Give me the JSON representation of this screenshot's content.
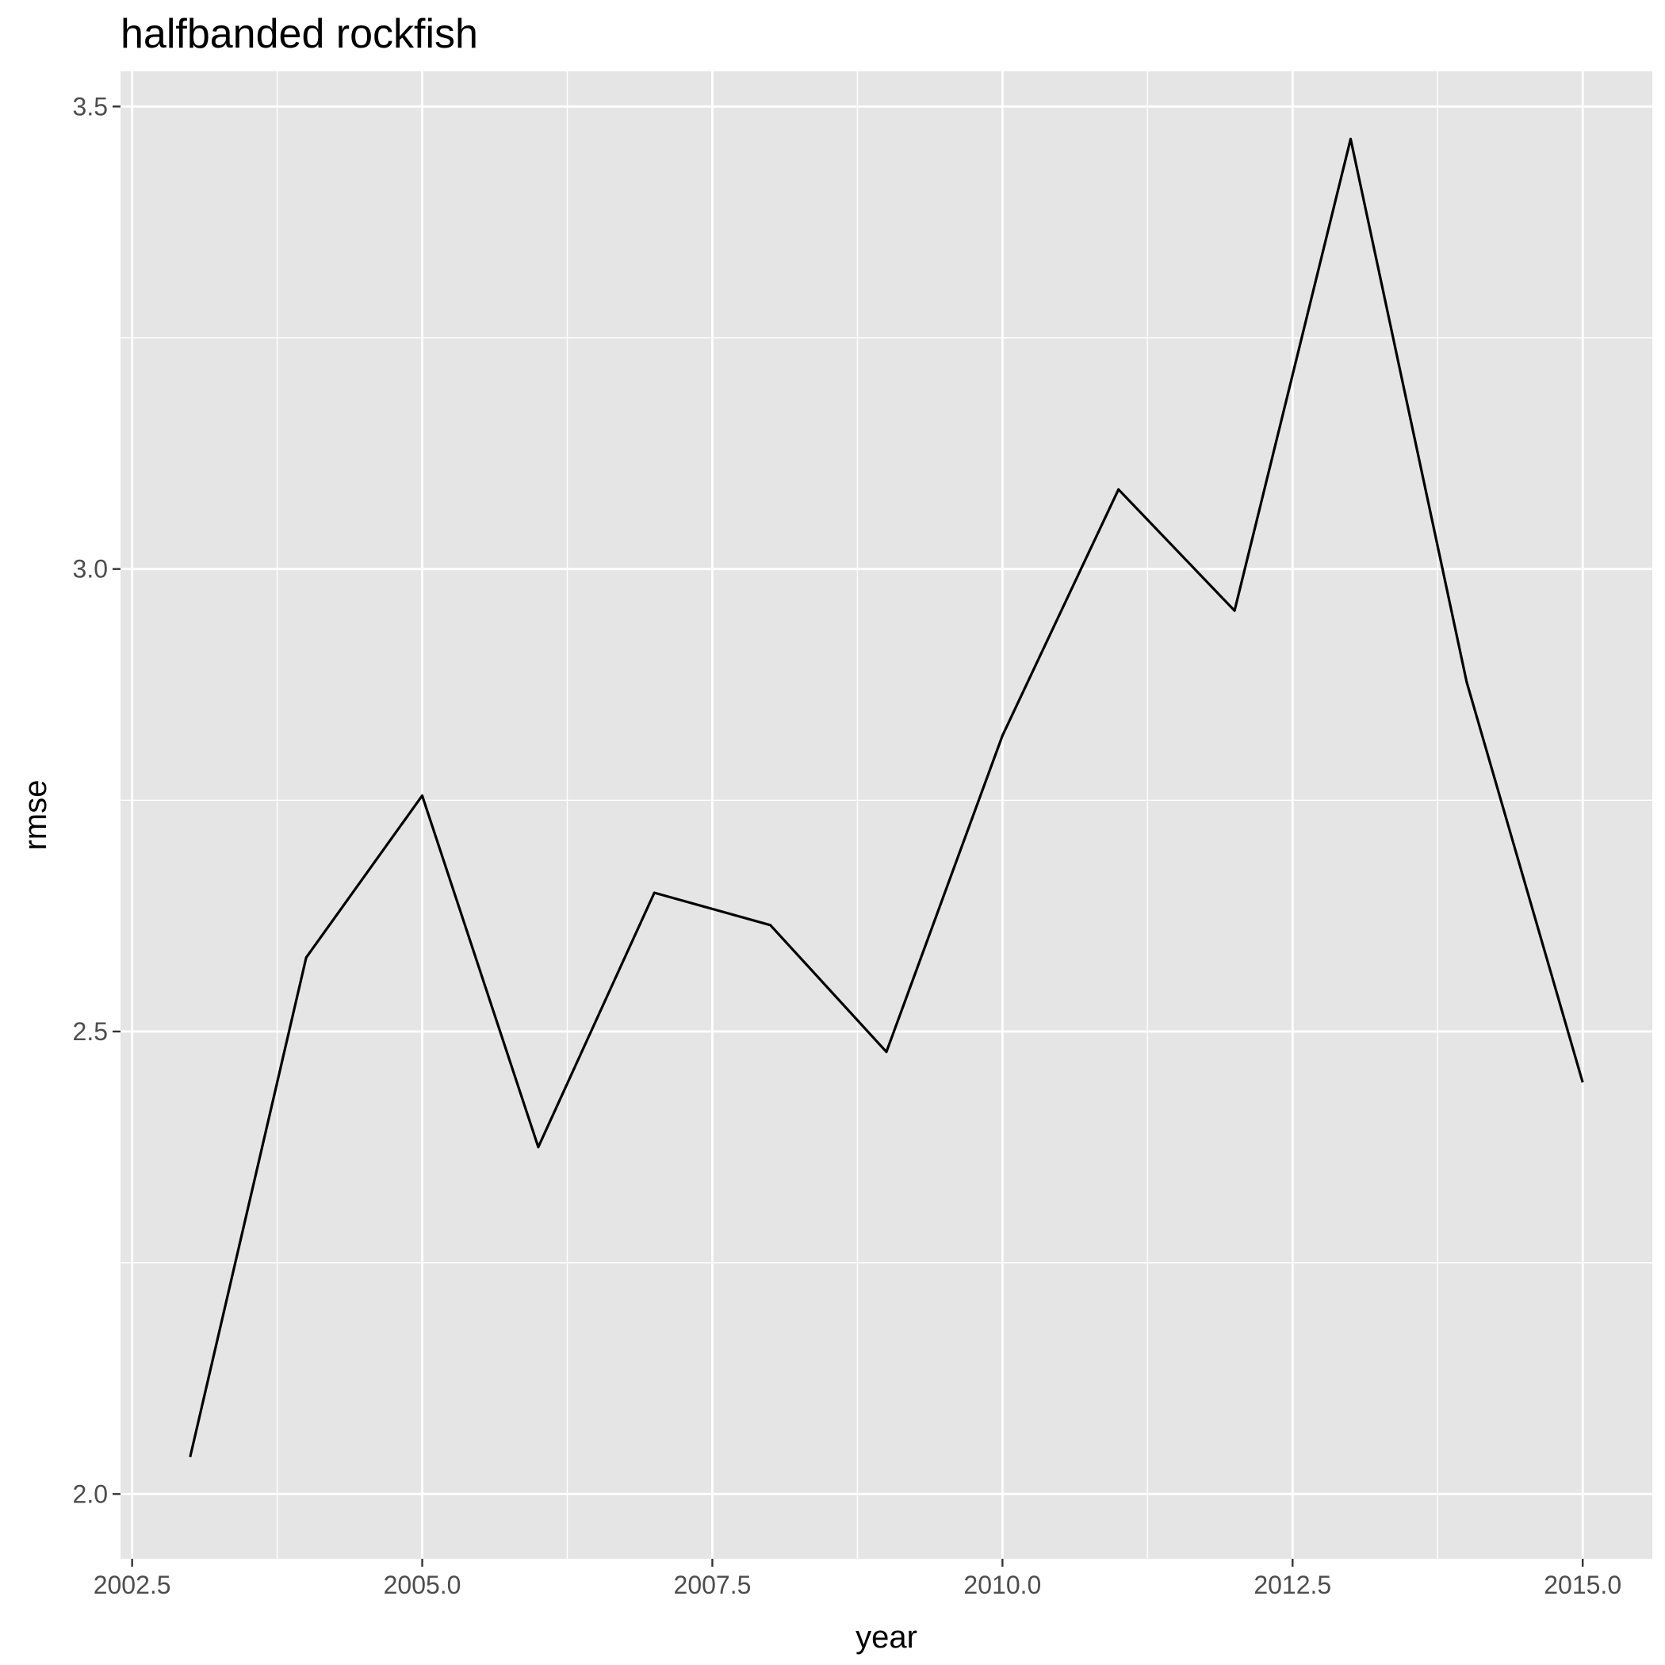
{
  "chart_data": {
    "type": "line",
    "title": "halfbanded rockfish",
    "xlabel": "year",
    "ylabel": "rmse",
    "x": [
      2003,
      2004,
      2005,
      2006,
      2007,
      2008,
      2009,
      2010,
      2011,
      2012,
      2013,
      2014,
      2015
    ],
    "series": [
      {
        "values": [
          2.04,
          2.58,
          2.755,
          2.375,
          2.65,
          2.615,
          2.478,
          2.82,
          3.086,
          2.955,
          3.465,
          2.878,
          2.445
        ]
      }
    ],
    "xlim": [
      2002.4,
      2015.6
    ],
    "ylim": [
      1.93,
      3.538
    ],
    "x_ticks": [
      "2002.5",
      "2005.0",
      "2007.5",
      "2010.0",
      "2012.5",
      "2015.0"
    ],
    "y_ticks": [
      "2.0",
      "2.5",
      "3.0",
      "3.5"
    ],
    "grid": true,
    "legend": "none",
    "colors": {
      "panel": "#e5e5e5",
      "grid": "#ffffff",
      "line": "#000000"
    }
  }
}
